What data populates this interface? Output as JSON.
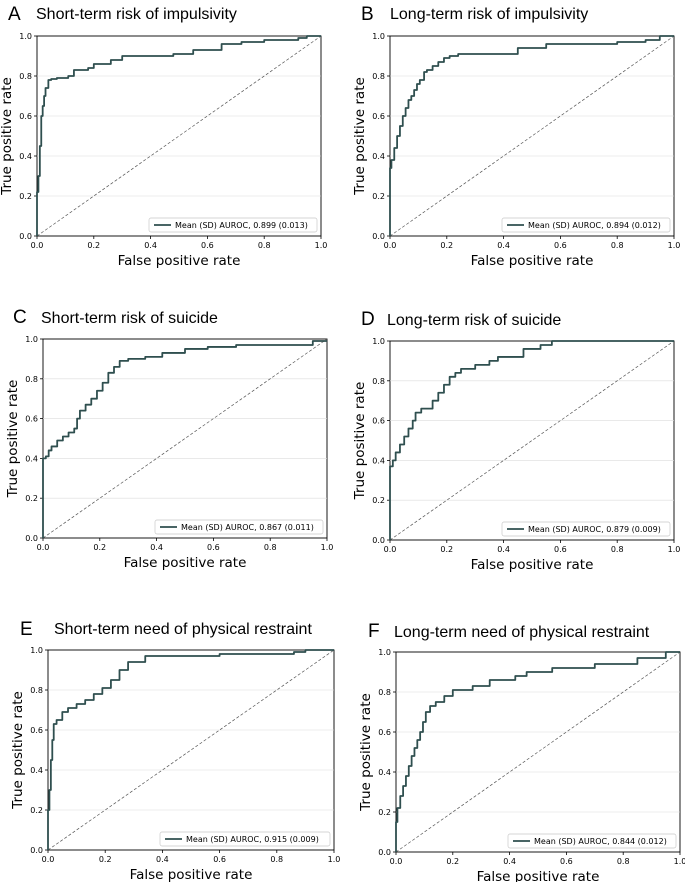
{
  "chart_data": [
    {
      "panel": "A",
      "type": "line",
      "title": "Short-term risk of impulsivity",
      "xlabel": "False positive rate",
      "ylabel": "True positive rate",
      "xlim": [
        0,
        1
      ],
      "ylim": [
        0,
        1
      ],
      "xticks": [
        "0.0",
        "0.2",
        "0.4",
        "0.6",
        "0.8",
        "1.0"
      ],
      "yticks": [
        "0.0",
        "0.2",
        "0.4",
        "0.6",
        "0.8",
        "1.0"
      ],
      "legend": "Mean (SD) AUROC, 0.899 (0.013)",
      "legend_loc": "lower-right",
      "series": [
        {
          "name": "ROC",
          "color": "#2f4f4f",
          "x": [
            0,
            0,
            0.005,
            0.005,
            0.01,
            0.01,
            0.015,
            0.015,
            0.02,
            0.02,
            0.025,
            0.025,
            0.03,
            0.03,
            0.04,
            0.04,
            0.05,
            0.05,
            0.07,
            0.07,
            0.09,
            0.09,
            0.11,
            0.11,
            0.13,
            0.13,
            0.18,
            0.18,
            0.2,
            0.2,
            0.26,
            0.26,
            0.3,
            0.3,
            0.48,
            0.48,
            0.55,
            0.55,
            0.65,
            0.65,
            0.72,
            0.72,
            0.8,
            0.8,
            0.92,
            0.92,
            0.95,
            0.95,
            1.0
          ],
          "y": [
            0,
            0.22,
            0.22,
            0.3,
            0.3,
            0.45,
            0.45,
            0.6,
            0.6,
            0.65,
            0.65,
            0.7,
            0.7,
            0.74,
            0.74,
            0.78,
            0.78,
            0.785,
            0.785,
            0.79,
            0.79,
            0.79,
            0.79,
            0.8,
            0.8,
            0.83,
            0.83,
            0.84,
            0.84,
            0.86,
            0.86,
            0.88,
            0.88,
            0.9,
            0.9,
            0.91,
            0.91,
            0.93,
            0.93,
            0.96,
            0.96,
            0.97,
            0.97,
            0.98,
            0.98,
            0.99,
            0.99,
            1.0,
            1.0
          ]
        }
      ]
    },
    {
      "panel": "B",
      "type": "line",
      "title": "Long-term risk of impulsivity",
      "xlabel": "False positive rate",
      "ylabel": "True positive rate",
      "xlim": [
        0,
        1
      ],
      "ylim": [
        0,
        1
      ],
      "xticks": [
        "0.0",
        "0.2",
        "0.4",
        "0.6",
        "0.8",
        "1.0"
      ],
      "yticks": [
        "0.0",
        "0.2",
        "0.4",
        "0.6",
        "0.8",
        "1.0"
      ],
      "legend": "Mean (SD) AUROC, 0.894 (0.012)",
      "legend_loc": "lower-right",
      "series": [
        {
          "name": "ROC",
          "color": "#2f4f4f",
          "x": [
            0,
            0,
            0.005,
            0.005,
            0.015,
            0.015,
            0.025,
            0.025,
            0.035,
            0.035,
            0.045,
            0.045,
            0.055,
            0.055,
            0.065,
            0.065,
            0.075,
            0.075,
            0.085,
            0.085,
            0.095,
            0.095,
            0.105,
            0.105,
            0.12,
            0.12,
            0.13,
            0.13,
            0.15,
            0.15,
            0.17,
            0.17,
            0.19,
            0.19,
            0.21,
            0.21,
            0.24,
            0.24,
            0.45,
            0.45,
            0.55,
            0.55,
            0.8,
            0.8,
            0.9,
            0.9,
            0.95,
            0.95,
            1.0
          ],
          "y": [
            0,
            0.34,
            0.34,
            0.38,
            0.38,
            0.44,
            0.44,
            0.5,
            0.5,
            0.55,
            0.55,
            0.6,
            0.6,
            0.64,
            0.64,
            0.68,
            0.68,
            0.7,
            0.7,
            0.73,
            0.73,
            0.76,
            0.76,
            0.78,
            0.78,
            0.82,
            0.82,
            0.83,
            0.83,
            0.85,
            0.85,
            0.87,
            0.87,
            0.89,
            0.89,
            0.9,
            0.9,
            0.91,
            0.91,
            0.94,
            0.94,
            0.96,
            0.96,
            0.97,
            0.97,
            0.98,
            0.98,
            1.0,
            1.0
          ]
        }
      ]
    },
    {
      "panel": "C",
      "type": "line",
      "title": "Short-term risk of suicide",
      "xlabel": "False positive rate",
      "ylabel": "True positive rate",
      "xlim": [
        0,
        1
      ],
      "ylim": [
        0,
        1
      ],
      "xticks": [
        "0.0",
        "0.2",
        "0.4",
        "0.6",
        "0.8",
        "1.0"
      ],
      "yticks": [
        "0.0",
        "0.2",
        "0.4",
        "0.6",
        "0.8",
        "1.0"
      ],
      "legend": "Mean (SD) AUROC, 0.867 (0.011)",
      "legend_loc": "lower-right",
      "series": [
        {
          "name": "ROC",
          "color": "#2f4f4f",
          "x": [
            0,
            0,
            0.01,
            0.01,
            0.02,
            0.02,
            0.03,
            0.03,
            0.05,
            0.05,
            0.07,
            0.07,
            0.09,
            0.09,
            0.11,
            0.11,
            0.12,
            0.12,
            0.13,
            0.13,
            0.15,
            0.15,
            0.17,
            0.17,
            0.19,
            0.19,
            0.21,
            0.21,
            0.23,
            0.23,
            0.25,
            0.25,
            0.27,
            0.27,
            0.3,
            0.3,
            0.36,
            0.36,
            0.42,
            0.42,
            0.5,
            0.5,
            0.58,
            0.58,
            0.68,
            0.68,
            0.95,
            0.95,
            1.0
          ],
          "y": [
            0,
            0.4,
            0.4,
            0.41,
            0.41,
            0.44,
            0.44,
            0.46,
            0.46,
            0.49,
            0.49,
            0.51,
            0.51,
            0.53,
            0.53,
            0.55,
            0.55,
            0.6,
            0.6,
            0.64,
            0.64,
            0.67,
            0.67,
            0.7,
            0.7,
            0.74,
            0.74,
            0.78,
            0.78,
            0.83,
            0.83,
            0.86,
            0.86,
            0.89,
            0.89,
            0.9,
            0.9,
            0.91,
            0.91,
            0.93,
            0.93,
            0.95,
            0.95,
            0.96,
            0.96,
            0.97,
            0.97,
            0.99,
            0.99
          ]
        }
      ]
    },
    {
      "panel": "D",
      "type": "line",
      "title": "Long-term risk of suicide",
      "xlabel": "False positive rate",
      "ylabel": "True positive rate",
      "xlim": [
        0,
        1
      ],
      "ylim": [
        0,
        1
      ],
      "xticks": [
        "0.0",
        "0.2",
        "0.4",
        "0.6",
        "0.8",
        "1.0"
      ],
      "yticks": [
        "0.0",
        "0.2",
        "0.4",
        "0.6",
        "0.8",
        "1.0"
      ],
      "legend": "Mean (SD) AUROC, 0.879 (0.009)",
      "legend_loc": "lower-right",
      "series": [
        {
          "name": "ROC",
          "color": "#2f4f4f",
          "x": [
            0,
            0,
            0.01,
            0.01,
            0.02,
            0.02,
            0.035,
            0.035,
            0.05,
            0.05,
            0.065,
            0.065,
            0.08,
            0.08,
            0.09,
            0.09,
            0.11,
            0.11,
            0.15,
            0.15,
            0.17,
            0.17,
            0.19,
            0.19,
            0.21,
            0.21,
            0.23,
            0.23,
            0.25,
            0.25,
            0.3,
            0.3,
            0.35,
            0.35,
            0.38,
            0.38,
            0.47,
            0.47,
            0.53,
            0.53,
            0.57,
            0.57,
            1.0
          ],
          "y": [
            0,
            0.37,
            0.37,
            0.4,
            0.4,
            0.44,
            0.44,
            0.48,
            0.48,
            0.52,
            0.52,
            0.56,
            0.56,
            0.6,
            0.6,
            0.64,
            0.64,
            0.66,
            0.66,
            0.7,
            0.7,
            0.74,
            0.74,
            0.78,
            0.78,
            0.82,
            0.82,
            0.84,
            0.84,
            0.86,
            0.86,
            0.88,
            0.88,
            0.9,
            0.9,
            0.92,
            0.92,
            0.96,
            0.96,
            0.98,
            0.98,
            1.0,
            1.0
          ]
        }
      ]
    },
    {
      "panel": "E",
      "type": "line",
      "title": "Short-term  need of physical restraint",
      "xlabel": "False positive rate",
      "ylabel": "True positive rate",
      "xlim": [
        0,
        1
      ],
      "ylim": [
        0,
        1
      ],
      "xticks": [
        "0.0",
        "0.2",
        "0.4",
        "0.6",
        "0.8",
        "1.0"
      ],
      "yticks": [
        "0.0",
        "0.2",
        "0.4",
        "0.6",
        "0.8",
        "1.0"
      ],
      "legend": "Mean (SD) AUROC, 0.915 (0.009)",
      "legend_loc": "lower-right",
      "series": [
        {
          "name": "ROC",
          "color": "#2f4f4f",
          "x": [
            0,
            0,
            0.005,
            0.005,
            0.01,
            0.01,
            0.015,
            0.015,
            0.02,
            0.02,
            0.03,
            0.03,
            0.05,
            0.05,
            0.07,
            0.07,
            0.1,
            0.1,
            0.13,
            0.13,
            0.16,
            0.16,
            0.19,
            0.19,
            0.22,
            0.22,
            0.25,
            0.25,
            0.28,
            0.28,
            0.34,
            0.34,
            0.6,
            0.6,
            0.75,
            0.75,
            0.86,
            0.86,
            0.9,
            0.9,
            1.0
          ],
          "y": [
            0,
            0.2,
            0.2,
            0.3,
            0.3,
            0.45,
            0.45,
            0.55,
            0.55,
            0.63,
            0.63,
            0.65,
            0.65,
            0.69,
            0.69,
            0.71,
            0.71,
            0.73,
            0.73,
            0.75,
            0.75,
            0.78,
            0.78,
            0.81,
            0.81,
            0.85,
            0.85,
            0.9,
            0.9,
            0.94,
            0.94,
            0.97,
            0.97,
            0.98,
            0.98,
            0.98,
            0.98,
            0.99,
            0.99,
            1.0,
            1.0
          ]
        }
      ]
    },
    {
      "panel": "F",
      "type": "line",
      "title": "Long-term need of physical restraint",
      "xlabel": "False positive rate",
      "ylabel": "True positive rate",
      "xlim": [
        0,
        1
      ],
      "ylim": [
        0,
        1
      ],
      "xticks": [
        "0.0",
        "0.2",
        "0.4",
        "0.6",
        "0.8",
        "1.0"
      ],
      "yticks": [
        "0.0",
        "0.2",
        "0.4",
        "0.6",
        "0.8",
        "1.0"
      ],
      "legend": "Mean (SD) AUROC, 0.844 (0.012)",
      "legend_loc": "lower-right",
      "series": [
        {
          "name": "ROC",
          "color": "#2f4f4f",
          "x": [
            0,
            0,
            0.005,
            0.005,
            0.015,
            0.015,
            0.025,
            0.025,
            0.035,
            0.035,
            0.045,
            0.045,
            0.055,
            0.055,
            0.065,
            0.065,
            0.075,
            0.075,
            0.085,
            0.085,
            0.095,
            0.095,
            0.105,
            0.105,
            0.12,
            0.12,
            0.14,
            0.14,
            0.17,
            0.17,
            0.2,
            0.2,
            0.27,
            0.27,
            0.33,
            0.33,
            0.42,
            0.42,
            0.46,
            0.46,
            0.55,
            0.55,
            0.7,
            0.7,
            0.85,
            0.85,
            0.95,
            0.95,
            1.0
          ],
          "y": [
            0,
            0.15,
            0.15,
            0.22,
            0.22,
            0.28,
            0.28,
            0.33,
            0.33,
            0.38,
            0.38,
            0.43,
            0.43,
            0.48,
            0.48,
            0.52,
            0.52,
            0.56,
            0.56,
            0.6,
            0.6,
            0.65,
            0.65,
            0.7,
            0.7,
            0.73,
            0.73,
            0.75,
            0.75,
            0.78,
            0.78,
            0.81,
            0.81,
            0.83,
            0.83,
            0.86,
            0.86,
            0.88,
            0.88,
            0.9,
            0.9,
            0.92,
            0.92,
            0.94,
            0.94,
            0.97,
            0.97,
            1.0,
            1.0
          ]
        }
      ]
    }
  ]
}
